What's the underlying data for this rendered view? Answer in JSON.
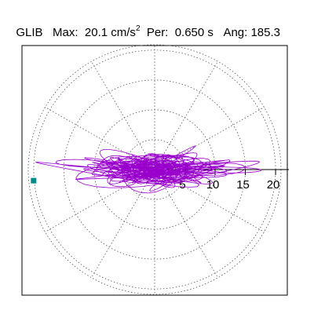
{
  "header": {
    "station": "GLIB",
    "max_label": "Max:",
    "max_value": "20.1 cm/s",
    "max_exp": "2",
    "per_label": "Per:",
    "per_value": "0.650 s",
    "ang_label": "Ang:",
    "ang_value": "185.3"
  },
  "chart_data": {
    "type": "polar-trajectory",
    "title": "GLIB  Max: 20.1 cm/s2  Per: 0.650 s  Ang: 185.3",
    "units": "cm/s2",
    "radial_ticks": [
      5,
      10,
      15,
      20
    ],
    "radial_max": 20.9,
    "spoke_angles_deg": [
      0,
      30,
      60,
      90,
      120,
      150,
      180,
      210,
      240,
      270,
      300,
      330
    ],
    "grid": "dotted",
    "max_amplitude": 20.1,
    "max_angle_deg": 185.3,
    "trajectory_color": "#9900cc",
    "marker_color": "#008b8b",
    "marker_shape": "square"
  }
}
